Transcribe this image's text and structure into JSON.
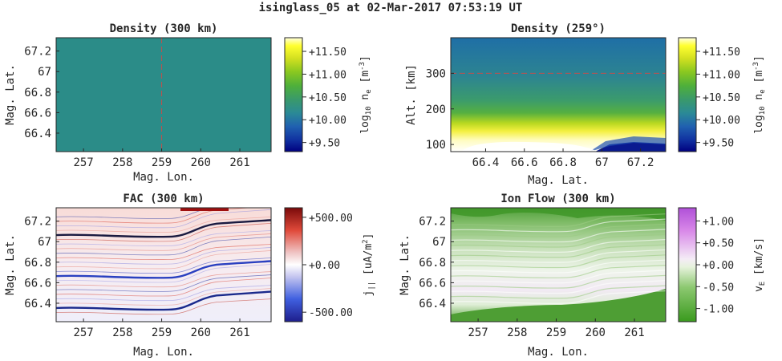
{
  "figure_title": "isinglass_05 at 02-Mar-2017 07:53:19 UT",
  "colors": {
    "dashed_marker": "#c0504d",
    "axes": "#262626",
    "density_cmap": [
      "#00007f",
      "#1030a0",
      "#2060b0",
      "#2b8a96",
      "#3a9a6a",
      "#4fb03a",
      "#8ac820",
      "#d4e020",
      "#ffff30",
      "#ffffe0"
    ],
    "fac_cmap": [
      "#1e1e8c",
      "#4060e0",
      "#c8c8f0",
      "#ffffff",
      "#f0c8c8",
      "#e04a3a",
      "#7a0a0a"
    ],
    "flow_cmap": [
      "#3a9a1e",
      "#8cc870",
      "#e6f2dc",
      "#f4ecf6",
      "#d888e8",
      "#b050d8"
    ]
  },
  "panels": [
    {
      "title": "Density (300 km)",
      "xlabel": "Mag. Lon.",
      "ylabel": "Mag. Lat.",
      "xticks": [
        "257",
        "258",
        "259",
        "260",
        "261"
      ],
      "yticks": [
        "67.2",
        "67",
        "66.8",
        "66.6",
        "66.4"
      ],
      "colorbar": {
        "label": "log10 ne [m-3]",
        "ticks": [
          "+11.50",
          "+11.00",
          "+10.50",
          "+10.00",
          "+9.50"
        ]
      }
    },
    {
      "title": "Density (259°)",
      "xlabel": "Mag. Lat.",
      "ylabel": "Alt. [km]",
      "xticks": [
        "66.4",
        "66.6",
        "66.8",
        "67",
        "67.2"
      ],
      "yticks": [
        "300",
        "200",
        "100"
      ],
      "colorbar": {
        "label": "log10 ne [m-3]",
        "ticks": [
          "+11.50",
          "+11.00",
          "+10.50",
          "+10.00",
          "+9.50"
        ]
      }
    },
    {
      "title": "FAC (300 km)",
      "xlabel": "Mag. Lon.",
      "ylabel": "Mag. Lat.",
      "xticks": [
        "257",
        "258",
        "259",
        "260",
        "261"
      ],
      "yticks": [
        "67.2",
        "67",
        "66.8",
        "66.6",
        "66.4"
      ],
      "colorbar": {
        "label": "j|| [uA/m2]",
        "ticks": [
          "+500.00",
          "+0.00",
          "-500.00"
        ]
      }
    },
    {
      "title": "Ion Flow (300 km)",
      "xlabel": "Mag. Lon.",
      "ylabel": "Mag. Lat.",
      "xticks": [
        "257",
        "258",
        "259",
        "260",
        "261"
      ],
      "yticks": [
        "67.2",
        "67",
        "66.8",
        "66.6",
        "66.4"
      ],
      "colorbar": {
        "label": "vE [km/s]",
        "ticks": [
          "+1.00",
          "+0.50",
          "+0.00",
          "-0.50",
          "-1.00"
        ]
      }
    }
  ],
  "chart_data": [
    {
      "type": "heatmap",
      "title": "Density (300 km)",
      "xlabel": "Mag. Lon.",
      "ylabel": "Mag. Lat.",
      "xlim": [
        256.3,
        261.8
      ],
      "ylim": [
        66.22,
        67.33
      ],
      "colorbar_range": [
        9.3,
        11.8
      ],
      "field_value": 10.3,
      "marker_line": {
        "orientation": "vertical",
        "x": 259
      }
    },
    {
      "type": "heatmap",
      "title": "Density (259°)",
      "xlabel": "Mag. Lat.",
      "ylabel": "Alt. [km]",
      "xlim": [
        66.22,
        67.33
      ],
      "ylim": [
        80,
        400
      ],
      "colorbar_range": [
        9.3,
        11.8
      ],
      "marker_line": {
        "orientation": "horizontal",
        "y": 300
      }
    },
    {
      "type": "heatmap",
      "title": "FAC (300 km)",
      "xlabel": "Mag. Lon.",
      "ylabel": "Mag. Lat.",
      "xlim": [
        256.3,
        261.8
      ],
      "ylim": [
        66.22,
        67.33
      ],
      "colorbar_range": [
        -600,
        600
      ]
    },
    {
      "type": "heatmap",
      "title": "Ion Flow (300 km)",
      "xlabel": "Mag. Lon.",
      "ylabel": "Mag. Lat.",
      "xlim": [
        256.3,
        261.8
      ],
      "ylim": [
        66.22,
        67.33
      ],
      "colorbar_range": [
        -1.3,
        1.3
      ]
    }
  ]
}
